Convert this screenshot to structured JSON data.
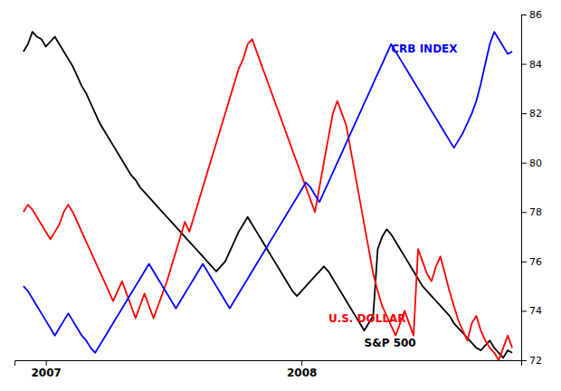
{
  "chart_data": {
    "type": "line",
    "categories": [
      null,
      null,
      null,
      null,
      null,
      "2007",
      null,
      null,
      null,
      null,
      null,
      null,
      null,
      null,
      null,
      null,
      null,
      null,
      null,
      null,
      null,
      null,
      null,
      null,
      null,
      null,
      null,
      null,
      null,
      null,
      null,
      null,
      null,
      null,
      null,
      null,
      null,
      null,
      null,
      null,
      null,
      null,
      null,
      null,
      null,
      null,
      null,
      null,
      null,
      null,
      null,
      null,
      null,
      null,
      null,
      null,
      null,
      null,
      null,
      null,
      null,
      null,
      "2008",
      null,
      null,
      null,
      null,
      null,
      null,
      null,
      null,
      null,
      null,
      null,
      null,
      null,
      null,
      null,
      null,
      null,
      null,
      null,
      null,
      null,
      null,
      null,
      null,
      null,
      null,
      null,
      null,
      null,
      null,
      null,
      null,
      null,
      null,
      null,
      null,
      null,
      null,
      null,
      null,
      null,
      null,
      null,
      null,
      null,
      null,
      null
    ],
    "series": [
      {
        "color": "black",
        "values": [
          84.5,
          84.8,
          85.3,
          85.1,
          85.0,
          84.7,
          84.9,
          85.1,
          84.8,
          84.5,
          84.2,
          83.9,
          83.5,
          83.1,
          82.8,
          82.4,
          82.0,
          81.6,
          81.3,
          81.0,
          80.7,
          80.4,
          80.1,
          79.8,
          79.5,
          79.3,
          79.0,
          78.8,
          78.6,
          78.4,
          78.2,
          78.0,
          77.8,
          77.6,
          77.4,
          77.2,
          77.0,
          76.8,
          76.6,
          76.4,
          76.2,
          76.0,
          75.8,
          75.6,
          75.8,
          76.0,
          76.4,
          76.8,
          77.2,
          77.5,
          77.8,
          77.5,
          77.2,
          76.9,
          76.6,
          76.3,
          76.0,
          75.7,
          75.4,
          75.1,
          74.8,
          74.6,
          74.8,
          75.0,
          75.2,
          75.4,
          75.6,
          75.8,
          75.6,
          75.3,
          75.0,
          74.7,
          74.4,
          74.1,
          73.8,
          73.5,
          73.2,
          73.5,
          73.8,
          76.5,
          77.0,
          77.3,
          77.1,
          76.8,
          76.5,
          76.2,
          75.9,
          75.6,
          75.3,
          75.0,
          74.8,
          74.6,
          74.4,
          74.2,
          74.0,
          73.8,
          73.5,
          73.3,
          73.1,
          72.9,
          72.7,
          72.5,
          72.4,
          72.6,
          72.8,
          72.5,
          72.3,
          72.1,
          72.4,
          72.3
        ]
      },
      {
        "color": "red",
        "values": [
          78.0,
          78.3,
          78.1,
          77.8,
          77.5,
          77.2,
          76.9,
          77.2,
          77.5,
          78.0,
          78.3,
          78.0,
          77.6,
          77.2,
          76.8,
          76.4,
          76.0,
          75.6,
          75.2,
          74.8,
          74.4,
          74.8,
          75.2,
          74.7,
          74.2,
          73.7,
          74.2,
          74.7,
          74.2,
          73.7,
          74.2,
          74.7,
          75.2,
          75.8,
          76.4,
          77.0,
          77.6,
          77.2,
          77.8,
          78.4,
          79.0,
          79.6,
          80.2,
          80.8,
          81.4,
          82.0,
          82.6,
          83.2,
          83.8,
          84.2,
          84.8,
          85.0,
          84.5,
          84.0,
          83.5,
          83.0,
          82.5,
          82.0,
          81.5,
          81.0,
          80.5,
          80.0,
          79.5,
          79.0,
          78.5,
          78.0,
          79.0,
          80.0,
          81.0,
          82.0,
          82.5,
          82.0,
          81.5,
          80.5,
          79.5,
          78.5,
          77.5,
          76.5,
          75.5,
          74.8,
          74.2,
          73.8,
          73.4,
          73.0,
          73.5,
          74.0,
          73.5,
          73.0,
          76.5,
          76.0,
          75.5,
          75.2,
          75.8,
          76.2,
          75.5,
          74.8,
          74.2,
          73.6,
          73.2,
          72.8,
          73.5,
          73.8,
          73.2,
          72.8,
          72.5,
          72.3,
          72.0,
          72.5,
          73.0,
          72.5
        ]
      },
      {
        "color": "blue",
        "values": [
          75.0,
          74.8,
          74.5,
          74.2,
          73.9,
          73.6,
          73.3,
          73.0,
          73.3,
          73.6,
          73.9,
          73.6,
          73.3,
          73.0,
          72.8,
          72.5,
          72.3,
          72.6,
          72.9,
          73.2,
          73.5,
          73.8,
          74.1,
          74.4,
          74.7,
          75.0,
          75.3,
          75.6,
          75.9,
          75.6,
          75.3,
          75.0,
          74.7,
          74.4,
          74.1,
          74.4,
          74.7,
          75.0,
          75.3,
          75.6,
          75.9,
          75.6,
          75.3,
          75.0,
          74.7,
          74.4,
          74.1,
          74.4,
          74.7,
          75.0,
          75.3,
          75.6,
          75.9,
          76.2,
          76.5,
          76.8,
          77.1,
          77.4,
          77.7,
          78.0,
          78.3,
          78.6,
          78.9,
          79.2,
          79.0,
          78.7,
          78.4,
          78.8,
          79.2,
          79.6,
          80.0,
          80.4,
          80.8,
          81.2,
          81.6,
          82.0,
          82.4,
          82.8,
          83.2,
          83.6,
          84.0,
          84.4,
          84.8,
          84.5,
          84.2,
          83.9,
          83.6,
          83.3,
          83.0,
          82.7,
          82.4,
          82.1,
          81.8,
          81.5,
          81.2,
          80.9,
          80.6,
          80.9,
          81.2,
          81.6,
          82.0,
          82.5,
          83.2,
          84.0,
          84.8,
          85.3,
          85.0,
          84.7,
          84.4,
          84.5
        ]
      }
    ],
    "annotations": [
      {
        "text": "CRB INDEX",
        "color": "blue",
        "x": 82,
        "y": 84.6
      },
      {
        "text": "U.S. DOLLAR",
        "color": "red",
        "x": 68,
        "y": 73.7
      },
      {
        "text": "S&P 500",
        "color": "black",
        "x": 76,
        "y": 72.7
      }
    ],
    "ylim": [
      72,
      86
    ],
    "yticks": [
      72,
      74,
      76,
      78,
      80,
      82,
      84,
      86
    ]
  }
}
